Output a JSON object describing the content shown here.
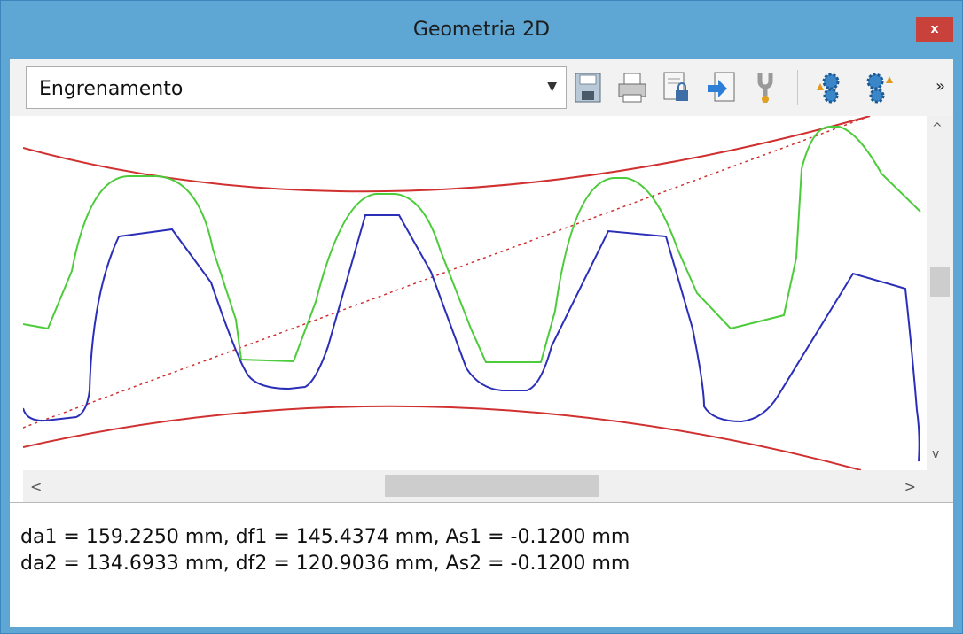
{
  "window": {
    "title": "Geometria 2D",
    "close_label": "x",
    "close_color": "#c8413a",
    "frame_color": "#5ea6d3"
  },
  "toolbar": {
    "combo_value": "Engrenamento",
    "chevron": "»",
    "icons": [
      "save-icon",
      "print-icon",
      "lock-document-icon",
      "import-icon",
      "wrench-icon",
      "gear-settings-icon",
      "gear-options-icon"
    ]
  },
  "scrollbars": {
    "up": "^",
    "down": "v",
    "left": "<",
    "right": ">"
  },
  "info": {
    "line1": "da1 = 159.2250 mm, df1 = 145.4374 mm, As1 = -0.1200 mm",
    "line2": "da2 = 134.6933 mm, df2 = 120.9036 mm, As2 = -0.1200 mm"
  },
  "chart_data": {
    "type": "line",
    "series": [
      {
        "color": "#4ccc3a"
      },
      {
        "color": "#2b2fb8"
      },
      {
        "color": "#d03030"
      },
      {
        "color": "#d03030"
      }
    ]
  }
}
